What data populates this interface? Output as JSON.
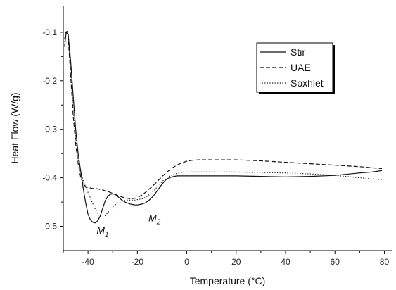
{
  "chart_data": {
    "type": "line",
    "xlabel": "Temperature (°C)",
    "ylabel": "Heat Flow (W/g)",
    "xlim": [
      -50,
      83
    ],
    "ylim": [
      -0.55,
      -0.045
    ],
    "xticks": [
      -40,
      -20,
      0,
      20,
      40,
      60,
      80
    ],
    "yticks": [
      -0.5,
      -0.4,
      -0.3,
      -0.2,
      -0.1
    ],
    "xtick_labels": [
      "-40",
      "-20",
      "0",
      "20",
      "40",
      "60",
      "80"
    ],
    "ytick_labels": [
      "-0.5",
      "-0.4",
      "-0.3",
      "-0.2",
      "-0.1"
    ],
    "legend_position": "top-right",
    "grid": false,
    "series": [
      {
        "name": "Stir",
        "style": "solid",
        "x": [
          -49.5,
          -48.8,
          -48,
          -47,
          -46,
          -45,
          -44,
          -43,
          -42,
          -41,
          -40,
          -39,
          -38,
          -37,
          -36,
          -35,
          -34,
          -33,
          -32,
          -31,
          -30,
          -29,
          -28,
          -27,
          -26,
          -25,
          -24,
          -23,
          -22,
          -21,
          -20,
          -19,
          -18,
          -17,
          -16,
          -15,
          -14,
          -13,
          -12,
          -11,
          -10,
          -9,
          -8,
          -6,
          -4,
          -2,
          0,
          5,
          10,
          20,
          30,
          40,
          50,
          60,
          70,
          75,
          79
        ],
        "y": [
          -0.13,
          -0.1,
          -0.105,
          -0.16,
          -0.23,
          -0.3,
          -0.35,
          -0.385,
          -0.42,
          -0.45,
          -0.475,
          -0.487,
          -0.492,
          -0.493,
          -0.488,
          -0.478,
          -0.462,
          -0.447,
          -0.438,
          -0.434,
          -0.433,
          -0.434,
          -0.438,
          -0.443,
          -0.447,
          -0.45,
          -0.452,
          -0.454,
          -0.455,
          -0.456,
          -0.456,
          -0.455,
          -0.454,
          -0.452,
          -0.449,
          -0.445,
          -0.44,
          -0.434,
          -0.427,
          -0.42,
          -0.413,
          -0.407,
          -0.402,
          -0.398,
          -0.396,
          -0.396,
          -0.396,
          -0.396,
          -0.396,
          -0.396,
          -0.397,
          -0.398,
          -0.397,
          -0.395,
          -0.39,
          -0.388,
          -0.385
        ]
      },
      {
        "name": "UAE",
        "style": "dashed",
        "x": [
          -49.5,
          -49,
          -48.3,
          -48,
          -47,
          -46,
          -45,
          -44,
          -43,
          -42,
          -41,
          -40,
          -39,
          -38,
          -37,
          -36,
          -35,
          -34,
          -33,
          -32,
          -31,
          -30,
          -29,
          -28,
          -27,
          -26,
          -25,
          -24,
          -23,
          -22,
          -21,
          -20,
          -19,
          -18,
          -17,
          -16,
          -14,
          -12,
          -10,
          -8,
          -6,
          -4,
          -2,
          0,
          2,
          5,
          10,
          20,
          30,
          40,
          50,
          60,
          70,
          79
        ],
        "y": [
          -0.115,
          -0.1,
          -0.098,
          -0.11,
          -0.19,
          -0.27,
          -0.33,
          -0.37,
          -0.398,
          -0.412,
          -0.418,
          -0.42,
          -0.421,
          -0.422,
          -0.422,
          -0.423,
          -0.424,
          -0.425,
          -0.427,
          -0.428,
          -0.43,
          -0.432,
          -0.434,
          -0.436,
          -0.438,
          -0.44,
          -0.441,
          -0.442,
          -0.443,
          -0.443,
          -0.442,
          -0.441,
          -0.438,
          -0.435,
          -0.431,
          -0.427,
          -0.418,
          -0.408,
          -0.397,
          -0.388,
          -0.38,
          -0.374,
          -0.369,
          -0.366,
          -0.364,
          -0.363,
          -0.363,
          -0.363,
          -0.365,
          -0.368,
          -0.371,
          -0.374,
          -0.377,
          -0.381
        ]
      },
      {
        "name": "Soxhlet",
        "style": "dotted",
        "x": [
          -49.5,
          -49,
          -48.5,
          -48,
          -47,
          -46,
          -45,
          -44,
          -43,
          -42,
          -41,
          -40,
          -39,
          -38,
          -37,
          -36,
          -35,
          -34,
          -33,
          -32,
          -31,
          -30,
          -29,
          -28,
          -27,
          -26,
          -25,
          -24,
          -23,
          -22,
          -21,
          -20,
          -19,
          -18,
          -17,
          -16,
          -15,
          -14,
          -13,
          -12,
          -11,
          -10,
          -9,
          -8,
          -6,
          -4,
          -2,
          0,
          5,
          10,
          20,
          30,
          40,
          50,
          60,
          70,
          79
        ],
        "y": [
          -0.12,
          -0.1,
          -0.097,
          -0.108,
          -0.18,
          -0.26,
          -0.32,
          -0.36,
          -0.385,
          -0.405,
          -0.418,
          -0.43,
          -0.442,
          -0.454,
          -0.465,
          -0.475,
          -0.48,
          -0.481,
          -0.478,
          -0.472,
          -0.466,
          -0.46,
          -0.456,
          -0.452,
          -0.45,
          -0.448,
          -0.447,
          -0.446,
          -0.446,
          -0.446,
          -0.446,
          -0.445,
          -0.444,
          -0.443,
          -0.441,
          -0.438,
          -0.434,
          -0.43,
          -0.425,
          -0.419,
          -0.413,
          -0.408,
          -0.403,
          -0.399,
          -0.394,
          -0.391,
          -0.389,
          -0.388,
          -0.388,
          -0.388,
          -0.388,
          -0.389,
          -0.39,
          -0.392,
          -0.395,
          -0.4,
          -0.404
        ]
      }
    ],
    "annotations": [
      {
        "name": "M1",
        "base": "M",
        "sub": "1",
        "x": -36.5,
        "y": -0.515
      },
      {
        "name": "M2",
        "base": "M",
        "sub": "2",
        "x": -15.5,
        "y": -0.49
      }
    ]
  }
}
